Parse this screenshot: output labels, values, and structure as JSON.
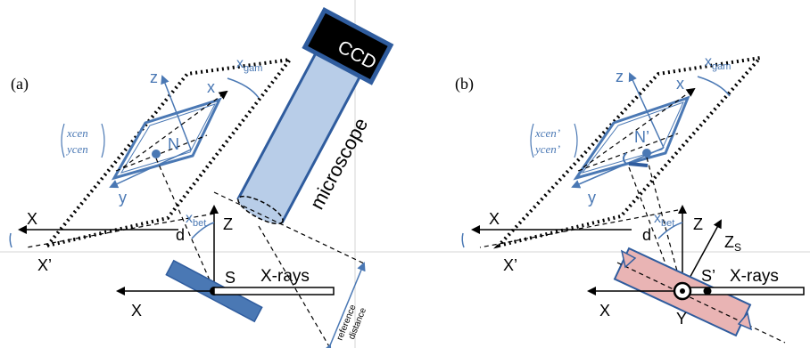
{
  "panel_a": {
    "label": "(a)",
    "ccd": "CCD",
    "microscope": "microscope",
    "x_gam": "x",
    "x_gam_sub": "gam",
    "x_bet": "x",
    "x_bet_sub": "bet",
    "axis_z_plate": "z",
    "axis_x_plate": "x",
    "axis_y_plate": "y",
    "point_n": "N",
    "matrix_top": "xcen",
    "matrix_bottom": "ycen",
    "axis_X": "X",
    "axis_X_prime": "X’",
    "axis_Z": "Z",
    "d": "d",
    "S": "S",
    "xrays": "X-rays",
    "axis_X_bottom": "X",
    "reference_1": "reference",
    "reference_2": "distance"
  },
  "panel_b": {
    "label": "(b)",
    "x_gam": "x",
    "x_gam_sub": "gam",
    "x_bet": "x",
    "x_bet_sub": "bet",
    "axis_z_plate": "z",
    "axis_x_plate": "x",
    "axis_y_plate": "y",
    "point_n": "N’",
    "matrix_top": "xcen’",
    "matrix_bottom": "ycen’",
    "axis_X": "X",
    "axis_X_prime": "X’",
    "axis_Z": "Z",
    "axis_Zs": "Z",
    "axis_Zs_sub": "S",
    "d": "d",
    "S_prime": "S’",
    "xrays": "X-rays",
    "axis_X_bottom": "X",
    "axis_Y": "Y"
  },
  "colors": {
    "blue": "#4a78b4",
    "dark_blue": "#2f5c9e",
    "light_blue_fill": "#b8cde8",
    "pink_fill": "#e9b4b4",
    "black": "#000000",
    "guide": "#c8c8c8"
  }
}
